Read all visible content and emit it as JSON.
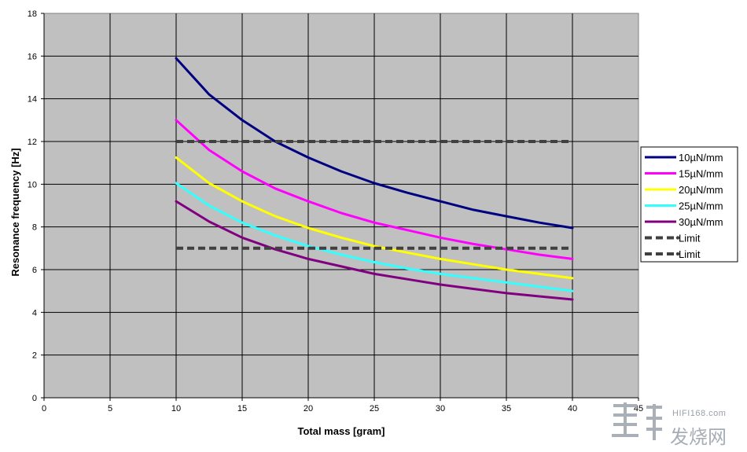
{
  "chart_data": {
    "type": "line",
    "title": "",
    "xlabel": "Total mass [gram]",
    "ylabel": "Resonance frequency [Hz]",
    "xlim": [
      0,
      45
    ],
    "ylim": [
      0,
      18
    ],
    "xticks": [
      0,
      5,
      10,
      15,
      20,
      25,
      30,
      35,
      40,
      45
    ],
    "yticks": [
      0,
      2,
      4,
      6,
      8,
      10,
      12,
      14,
      16,
      18
    ],
    "grid": true,
    "legend_position": "right",
    "plot_background": "#c0c0c0",
    "series": [
      {
        "name": "10µN/mm",
        "color": "#000080",
        "dashed": false,
        "x": [
          10,
          12.5,
          15,
          17.5,
          20,
          22.5,
          25,
          27.5,
          30,
          32.5,
          35,
          37.5,
          40
        ],
        "y": [
          15.9,
          14.2,
          13.0,
          12.0,
          11.25,
          10.6,
          10.05,
          9.6,
          9.2,
          8.8,
          8.5,
          8.2,
          7.95
        ]
      },
      {
        "name": "15µN/mm",
        "color": "#ff00ff",
        "dashed": false,
        "x": [
          10,
          12.5,
          15,
          17.5,
          20,
          22.5,
          25,
          27.5,
          30,
          32.5,
          35,
          37.5,
          40
        ],
        "y": [
          13.0,
          11.6,
          10.6,
          9.8,
          9.2,
          8.65,
          8.2,
          7.85,
          7.5,
          7.2,
          6.95,
          6.7,
          6.5
        ]
      },
      {
        "name": "20µN/mm",
        "color": "#ffff00",
        "dashed": false,
        "x": [
          10,
          12.5,
          15,
          17.5,
          20,
          22.5,
          25,
          27.5,
          30,
          32.5,
          35,
          37.5,
          40
        ],
        "y": [
          11.25,
          10.05,
          9.2,
          8.5,
          7.95,
          7.5,
          7.1,
          6.8,
          6.5,
          6.25,
          6.0,
          5.8,
          5.6
        ]
      },
      {
        "name": "25µN/mm",
        "color": "#33ffff",
        "dashed": false,
        "x": [
          10,
          12.5,
          15,
          17.5,
          20,
          22.5,
          25,
          27.5,
          30,
          32.5,
          35,
          37.5,
          40
        ],
        "y": [
          10.05,
          9.0,
          8.2,
          7.6,
          7.1,
          6.7,
          6.35,
          6.05,
          5.8,
          5.6,
          5.4,
          5.2,
          5.0
        ]
      },
      {
        "name": "30µN/mm",
        "color": "#800080",
        "dashed": false,
        "x": [
          10,
          12.5,
          15,
          17.5,
          20,
          22.5,
          25,
          27.5,
          30,
          32.5,
          35,
          37.5,
          40
        ],
        "y": [
          9.2,
          8.25,
          7.5,
          6.95,
          6.5,
          6.15,
          5.8,
          5.55,
          5.3,
          5.1,
          4.9,
          4.75,
          4.6
        ]
      },
      {
        "name": "Limit",
        "color": "#404040",
        "dashed": true,
        "x": [
          10,
          40
        ],
        "y": [
          12,
          12
        ]
      },
      {
        "name": "Limit",
        "color": "#404040",
        "dashed": true,
        "x": [
          10,
          40
        ],
        "y": [
          7,
          7
        ]
      }
    ]
  },
  "watermark": {
    "url": "HIFI168.com",
    "title": "发烧网"
  }
}
